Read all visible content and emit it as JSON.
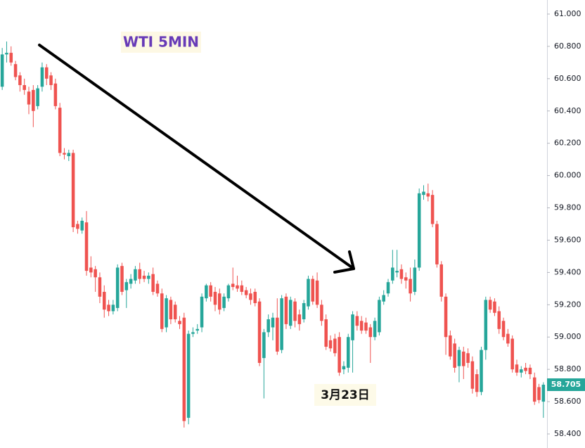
{
  "chart_data": {
    "type": "candlestick",
    "title": "WTI 5MIN",
    "annotation": "3月23日",
    "last_price": 58.705,
    "up_color": "#26a69a",
    "down_color": "#ef5350",
    "ylim": [
      58.313,
      61.087
    ],
    "yticks": [
      {
        "value": 58.4,
        "label": "58.400"
      },
      {
        "value": 58.6,
        "label": "58.600"
      },
      {
        "value": 58.8,
        "label": "58.800"
      },
      {
        "value": 59.0,
        "label": "59.000"
      },
      {
        "value": 59.2,
        "label": "59.200"
      },
      {
        "value": 59.4,
        "label": "59.400"
      },
      {
        "value": 59.6,
        "label": "59.600"
      },
      {
        "value": 59.8,
        "label": "59.800"
      },
      {
        "value": 60.0,
        "label": "60.000"
      },
      {
        "value": 60.2,
        "label": "60.200"
      },
      {
        "value": 60.4,
        "label": "60.400"
      },
      {
        "value": 60.6,
        "label": "60.600"
      },
      {
        "value": 60.8,
        "label": "60.800"
      },
      {
        "value": 61.0,
        "label": "61.000"
      }
    ],
    "ohlc": [
      [
        60.55,
        60.79,
        60.53,
        60.75
      ],
      [
        60.75,
        60.83,
        60.7,
        60.76
      ],
      [
        60.76,
        60.8,
        60.68,
        60.7
      ],
      [
        60.69,
        60.71,
        60.59,
        60.61
      ],
      [
        60.62,
        60.64,
        60.52,
        60.56
      ],
      [
        60.56,
        60.6,
        60.5,
        60.53
      ],
      [
        60.52,
        60.55,
        60.38,
        60.44
      ],
      [
        60.53,
        60.56,
        60.3,
        60.4
      ],
      [
        60.43,
        60.56,
        60.41,
        60.54
      ],
      [
        60.55,
        60.7,
        60.52,
        60.67
      ],
      [
        60.67,
        60.69,
        60.56,
        60.6
      ],
      [
        60.62,
        60.64,
        60.53,
        60.56
      ],
      [
        60.57,
        60.6,
        60.41,
        60.43
      ],
      [
        60.42,
        60.45,
        60.12,
        60.14
      ],
      [
        60.14,
        60.17,
        60.1,
        60.13
      ],
      [
        60.12,
        60.16,
        60.09,
        60.14
      ],
      [
        60.14,
        60.16,
        59.65,
        59.68
      ],
      [
        59.7,
        59.72,
        59.64,
        59.67
      ],
      [
        59.66,
        59.74,
        59.64,
        59.72
      ],
      [
        59.71,
        59.78,
        59.38,
        59.41
      ],
      [
        59.43,
        59.5,
        59.37,
        59.4
      ],
      [
        59.42,
        59.44,
        59.28,
        59.37
      ],
      [
        59.37,
        59.4,
        59.21,
        59.25
      ],
      [
        59.28,
        59.32,
        59.12,
        59.17
      ],
      [
        59.2,
        59.23,
        59.13,
        59.16
      ],
      [
        59.16,
        59.23,
        59.14,
        59.2
      ],
      [
        59.18,
        59.45,
        59.16,
        59.43
      ],
      [
        59.44,
        59.46,
        59.26,
        59.28
      ],
      [
        59.29,
        59.36,
        59.18,
        59.34
      ],
      [
        59.33,
        59.39,
        59.3,
        59.36
      ],
      [
        59.35,
        59.44,
        59.33,
        59.42
      ],
      [
        59.42,
        59.46,
        59.33,
        59.36
      ],
      [
        59.38,
        59.41,
        59.34,
        59.36
      ],
      [
        59.36,
        59.4,
        59.33,
        59.38
      ],
      [
        59.39,
        59.43,
        59.26,
        59.28
      ],
      [
        59.33,
        59.35,
        59.25,
        59.27
      ],
      [
        59.27,
        59.3,
        59.03,
        59.05
      ],
      [
        59.06,
        59.26,
        59.03,
        59.24
      ],
      [
        59.23,
        59.25,
        59.08,
        59.11
      ],
      [
        59.2,
        59.22,
        59.09,
        59.11
      ],
      [
        59.1,
        59.13,
        59.05,
        59.08
      ],
      [
        59.12,
        59.15,
        58.44,
        58.48
      ],
      [
        58.5,
        59.04,
        58.46,
        59.02
      ],
      [
        59.02,
        59.06,
        59.0,
        59.03
      ],
      [
        59.04,
        59.08,
        59.02,
        59.05
      ],
      [
        59.06,
        59.27,
        59.03,
        59.25
      ],
      [
        59.24,
        59.33,
        59.22,
        59.32
      ],
      [
        59.32,
        59.34,
        59.22,
        59.25
      ],
      [
        59.28,
        59.31,
        59.16,
        59.2
      ],
      [
        59.27,
        59.3,
        59.14,
        59.17
      ],
      [
        59.18,
        59.27,
        59.16,
        59.25
      ],
      [
        59.24,
        59.33,
        59.22,
        59.32
      ],
      [
        59.33,
        59.43,
        59.29,
        59.31
      ],
      [
        59.32,
        59.38,
        59.28,
        59.3
      ],
      [
        59.32,
        59.35,
        59.26,
        59.28
      ],
      [
        59.29,
        59.31,
        59.24,
        59.26
      ],
      [
        59.27,
        59.3,
        59.2,
        59.23
      ],
      [
        59.28,
        59.3,
        59.19,
        59.21
      ],
      [
        59.22,
        59.24,
        58.82,
        58.84
      ],
      [
        58.87,
        59.05,
        58.62,
        59.03
      ],
      [
        59.03,
        59.14,
        59.0,
        59.11
      ],
      [
        59.06,
        59.15,
        58.98,
        59.12
      ],
      [
        59.12,
        59.24,
        58.89,
        58.91
      ],
      [
        58.92,
        59.26,
        58.9,
        59.24
      ],
      [
        59.25,
        59.27,
        59.05,
        59.08
      ],
      [
        59.07,
        59.25,
        59.05,
        59.23
      ],
      [
        59.22,
        59.24,
        59.06,
        59.1
      ],
      [
        59.14,
        59.17,
        59.04,
        59.08
      ],
      [
        59.11,
        59.23,
        59.09,
        59.21
      ],
      [
        59.19,
        59.38,
        59.17,
        59.36
      ],
      [
        59.36,
        59.38,
        59.2,
        59.22
      ],
      [
        59.35,
        59.4,
        59.18,
        59.2
      ],
      [
        59.2,
        59.23,
        59.07,
        59.1
      ],
      [
        59.11,
        59.14,
        58.92,
        58.94
      ],
      [
        58.98,
        59.01,
        58.91,
        58.93
      ],
      [
        58.99,
        59.02,
        58.88,
        58.9
      ],
      [
        59.0,
        59.03,
        58.76,
        58.78
      ],
      [
        58.8,
        58.85,
        58.77,
        58.82
      ],
      [
        58.81,
        59.02,
        58.78,
        59.0
      ],
      [
        58.98,
        59.16,
        58.78,
        59.14
      ],
      [
        59.13,
        59.16,
        59.04,
        59.07
      ],
      [
        59.1,
        59.13,
        59.02,
        59.04
      ],
      [
        59.09,
        59.12,
        59.02,
        59.04
      ],
      [
        59.06,
        59.08,
        58.84,
        59.0
      ],
      [
        59.0,
        59.12,
        58.98,
        59.1
      ],
      [
        59.03,
        59.25,
        59.01,
        59.23
      ],
      [
        59.22,
        59.29,
        59.2,
        59.26
      ],
      [
        59.27,
        59.36,
        59.25,
        59.34
      ],
      [
        59.35,
        59.54,
        59.33,
        59.43
      ],
      [
        59.4,
        59.54,
        59.37,
        59.41
      ],
      [
        59.42,
        59.45,
        59.33,
        59.36
      ],
      [
        59.37,
        59.4,
        59.3,
        59.35
      ],
      [
        59.36,
        59.43,
        59.22,
        59.27
      ],
      [
        59.28,
        59.48,
        59.26,
        59.43
      ],
      [
        59.43,
        59.92,
        59.41,
        59.89
      ],
      [
        59.88,
        59.94,
        59.85,
        59.9
      ],
      [
        59.89,
        59.95,
        59.84,
        59.87
      ],
      [
        59.88,
        59.91,
        59.68,
        59.7
      ],
      [
        59.7,
        59.72,
        59.43,
        59.45
      ],
      [
        59.45,
        59.47,
        59.22,
        59.25
      ],
      [
        59.25,
        59.27,
        58.89,
        59.0
      ],
      [
        59.01,
        59.04,
        58.86,
        58.88
      ],
      [
        58.96,
        58.99,
        58.78,
        58.81
      ],
      [
        58.82,
        58.94,
        58.72,
        58.92
      ],
      [
        58.91,
        58.94,
        58.74,
        58.82
      ],
      [
        58.9,
        58.93,
        58.81,
        58.84
      ],
      [
        58.85,
        58.88,
        58.65,
        58.68
      ],
      [
        58.77,
        58.8,
        58.63,
        58.66
      ],
      [
        58.66,
        58.94,
        58.64,
        58.92
      ],
      [
        58.92,
        59.25,
        58.86,
        59.23
      ],
      [
        59.23,
        59.25,
        59.15,
        59.17
      ],
      [
        59.22,
        59.24,
        59.13,
        59.15
      ],
      [
        59.16,
        59.19,
        59.02,
        59.05
      ],
      [
        59.1,
        59.12,
        58.98,
        59.0
      ],
      [
        59.02,
        59.05,
        58.94,
        58.96
      ],
      [
        58.99,
        59.01,
        58.78,
        58.8
      ],
      [
        58.83,
        58.86,
        58.76,
        58.78
      ],
      [
        58.78,
        58.82,
        58.75,
        58.8
      ],
      [
        58.81,
        58.84,
        58.77,
        58.79
      ],
      [
        58.81,
        58.83,
        58.74,
        58.77
      ],
      [
        58.75,
        58.78,
        58.58,
        58.6
      ],
      [
        58.69,
        58.71,
        58.59,
        58.61
      ],
      [
        58.6,
        58.72,
        58.5,
        58.705
      ]
    ]
  }
}
